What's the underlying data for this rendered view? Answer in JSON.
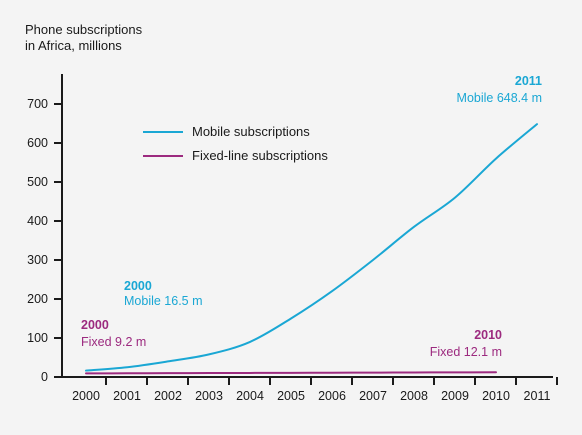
{
  "chart_data": {
    "type": "line",
    "title": "Phone subscriptions in Africa, millions",
    "title_lines": [
      "Phone subscriptions",
      "in Africa, millions"
    ],
    "xlabel": "",
    "ylabel": "",
    "x": [
      2000,
      2001,
      2002,
      2003,
      2004,
      2005,
      2006,
      2007,
      2008,
      2009,
      2010,
      2011
    ],
    "x_tick_labels": [
      "2000",
      "2001",
      "2002",
      "2003",
      "2004",
      "2005",
      "2006",
      "2007",
      "2008",
      "2009",
      "2010",
      "2011"
    ],
    "xlim": [
      2000,
      2011
    ],
    "ylim": [
      0,
      700
    ],
    "y_ticks": [
      0,
      100,
      200,
      300,
      400,
      500,
      600,
      700
    ],
    "y_tick_labels": [
      "0",
      "100",
      "200",
      "300",
      "400",
      "500",
      "600",
      "700"
    ],
    "grid": false,
    "legend_position": "upper-center",
    "series": [
      {
        "name": "Mobile subscriptions",
        "color": "#1aa7d4",
        "x": [
          2000,
          2001,
          2002,
          2003,
          2004,
          2005,
          2006,
          2007,
          2008,
          2009,
          2010,
          2011
        ],
        "values": [
          16.5,
          25,
          40,
          58,
          90,
          150,
          220,
          300,
          385,
          460,
          560,
          648.4
        ]
      },
      {
        "name": "Fixed-line subscriptions",
        "color": "#9c2a7f",
        "x": [
          2000,
          2001,
          2002,
          2003,
          2004,
          2005,
          2006,
          2007,
          2008,
          2009,
          2010
        ],
        "values": [
          9.2,
          9.5,
          9.8,
          10.1,
          10.4,
          10.7,
          11.0,
          11.3,
          11.6,
          11.9,
          12.1
        ]
      }
    ],
    "annotations": [
      {
        "year": "2011",
        "label": "Mobile 648.4 m",
        "color": "#1aa7d4"
      },
      {
        "year": "2000",
        "label": "Mobile 16.5 m",
        "color": "#1aa7d4"
      },
      {
        "year": "2000",
        "label": "Fixed 9.2 m",
        "color": "#9c2a7f"
      },
      {
        "year": "2010",
        "label": "Fixed 12.1 m",
        "color": "#9c2a7f"
      }
    ]
  }
}
